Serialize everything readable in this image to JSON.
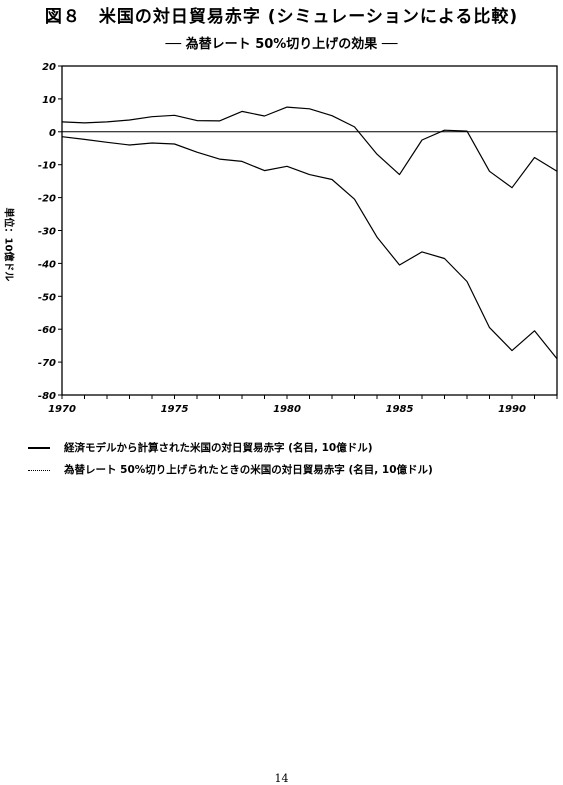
{
  "title": "図８　米国の対日貿易赤字 (シミュレーションによる比較)",
  "subtitle": "── 為替レート 50%切り上げの効果 ──",
  "page_number": "14",
  "chart_data": {
    "type": "line",
    "ylabel": "単位：10億ドル",
    "xlabel": "",
    "xlim": [
      1970,
      1992
    ],
    "ylim": [
      -80,
      20
    ],
    "x_ticks": [
      "1970",
      "1975",
      "1980",
      "1985",
      "1990"
    ],
    "y_ticks": [
      "20",
      "10",
      "0",
      "-10",
      "-20",
      "-30",
      "-40",
      "-50",
      "-60",
      "-70",
      "-80"
    ],
    "grid": false,
    "zero_line": true,
    "x": [
      1970,
      1971,
      1972,
      1973,
      1974,
      1975,
      1976,
      1977,
      1978,
      1979,
      1980,
      1981,
      1982,
      1983,
      1984,
      1985,
      1986,
      1987,
      1988,
      1989,
      1990,
      1991,
      1992
    ],
    "series": [
      {
        "name": "経済モデルから計算された米国の対日貿易赤字 (名目, 10億ドル)",
        "style": "solid",
        "values": [
          -1.5,
          -2.3,
          -3.2,
          -4.0,
          -3.4,
          -3.7,
          -6.2,
          -8.3,
          -9.0,
          -11.8,
          -10.5,
          -13.0,
          -14.5,
          -20.5,
          -32.0,
          -40.5,
          -36.5,
          -38.5,
          -45.5,
          -59.5,
          -66.5,
          -60.5,
          -69.0
        ]
      },
      {
        "name": "為替レート 50%切り上げられたときの米国の対日貿易赤字 (名目, 10億ドル)",
        "style": "dotted",
        "values": [
          3.0,
          2.7,
          3.0,
          3.6,
          4.6,
          5.0,
          3.4,
          3.3,
          6.2,
          4.8,
          7.5,
          7.0,
          4.9,
          1.5,
          -6.8,
          -13.0,
          -2.5,
          0.5,
          0.2,
          -12.0,
          -17.0,
          -7.8,
          -12.0
        ]
      }
    ]
  }
}
